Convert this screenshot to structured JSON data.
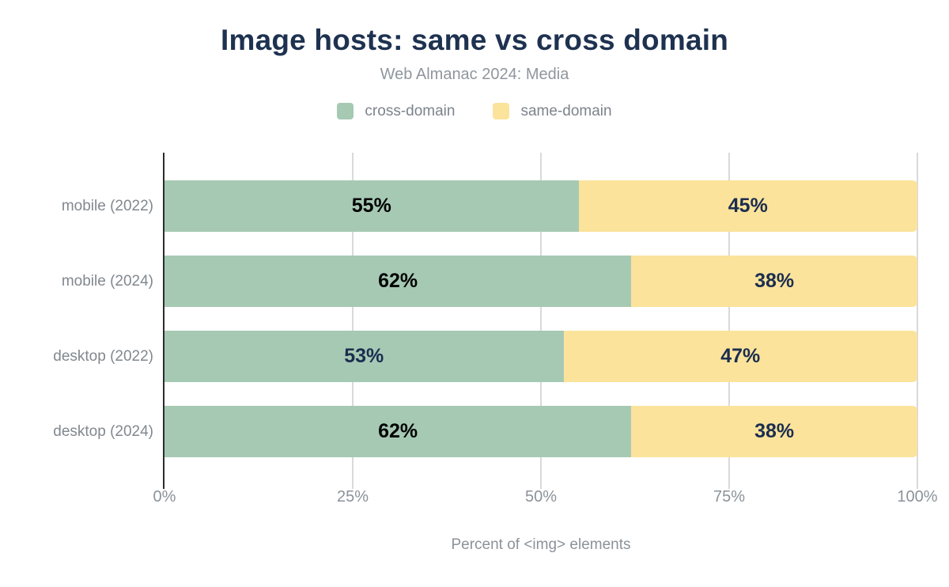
{
  "header": {
    "title": "Image hosts: same vs cross domain",
    "subtitle": "Web Almanac 2024: Media"
  },
  "legend": [
    {
      "label": "cross-domain",
      "color": "#a6c9b4"
    },
    {
      "label": "same-domain",
      "color": "#fbe39b"
    }
  ],
  "chart_data": {
    "type": "bar",
    "orientation": "horizontal",
    "stacked": true,
    "title": "Image hosts: same vs cross domain",
    "subtitle": "Web Almanac 2024: Media",
    "categories": [
      "mobile (2022)",
      "mobile (2024)",
      "desktop (2022)",
      "desktop (2024)"
    ],
    "series": [
      {
        "name": "cross-domain",
        "color": "#a6c9b4",
        "values": [
          55,
          62,
          53,
          62
        ]
      },
      {
        "name": "same-domain",
        "color": "#fbe39b",
        "values": [
          45,
          38,
          47,
          38
        ]
      }
    ],
    "data_labels": [
      [
        {
          "text": "55%",
          "color": "#000000"
        },
        {
          "text": "45%",
          "color": "#1b2d4f"
        }
      ],
      [
        {
          "text": "62%",
          "color": "#000000"
        },
        {
          "text": "38%",
          "color": "#1b2d4f"
        }
      ],
      [
        {
          "text": "53%",
          "color": "#1b2d4f"
        },
        {
          "text": "47%",
          "color": "#1b2d4f"
        }
      ],
      [
        {
          "text": "62%",
          "color": "#000000"
        },
        {
          "text": "38%",
          "color": "#1b2d4f"
        }
      ]
    ],
    "x_ticks": [
      "0%",
      "25%",
      "50%",
      "75%",
      "100%"
    ],
    "tick_positions": [
      0,
      25,
      50,
      75,
      100
    ],
    "xlim": [
      0,
      100
    ],
    "xlabel": "Percent of <img> elements",
    "grid": true,
    "legend_position": "top",
    "axis_color": "#2b2b2b",
    "grid_color": "#d9d9d9"
  }
}
